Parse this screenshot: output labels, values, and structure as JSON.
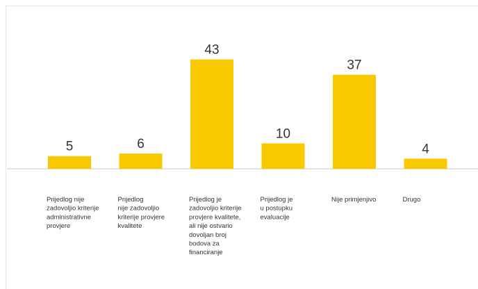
{
  "chart_data": {
    "type": "bar",
    "categories": [
      [
        "Prijedlog nije",
        "zadovoljio kriterije",
        "administrativne",
        "provjere"
      ],
      [
        "Prijedlog",
        "nije zadovoljio",
        "kriterije provjere",
        "kvalitete"
      ],
      [
        "Prijedlog je",
        "zadovoljio kriterije",
        "provjere kvalitete,",
        "ali nije ostvario",
        "dovoljan broj",
        "bodova za",
        "financiranje"
      ],
      [
        "Prijedlog je",
        "u postupku",
        "evaluacije"
      ],
      [
        "Nije primjenjivo"
      ],
      [
        "Drugo"
      ]
    ],
    "values": [
      5,
      6,
      43,
      10,
      37,
      4
    ],
    "value_labels": [
      "5",
      "6",
      "43",
      "10",
      "37",
      "4"
    ],
    "title": "",
    "xlabel": "",
    "ylabel": "",
    "ylim": [
      0,
      50
    ],
    "grid": false,
    "legend": "none",
    "colors": {
      "bar": "#F9C900",
      "axis": "#e3e3e3",
      "text": "#333333"
    }
  }
}
